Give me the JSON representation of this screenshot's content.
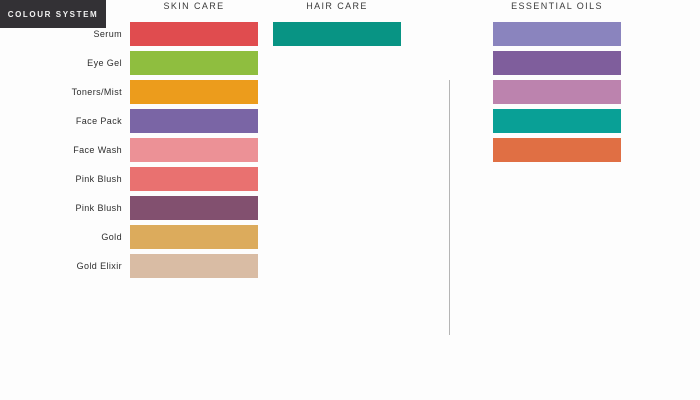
{
  "badge": {
    "label": "COLOUR SYSTEM",
    "bg": "#333135",
    "text_color": "#f2f2f2"
  },
  "divider": {
    "color": "#b5b5b5"
  },
  "columns": [
    {
      "id": "skin-care",
      "header": "SKIN CARE",
      "has_labels": true,
      "swatches": [
        {
          "label": "Serum",
          "color": "#e04c4f"
        },
        {
          "label": "Eye Gel",
          "color": "#8fbe3f"
        },
        {
          "label": "Toners/Mist",
          "color": "#ec9c1c"
        },
        {
          "label": "Face Pack",
          "color": "#7a65a5"
        },
        {
          "label": "Face Wash",
          "color": "#ec9196"
        },
        {
          "label": "Pink Blush",
          "color": "#e97170"
        },
        {
          "label": "Pink Blush",
          "color": "#82506f"
        },
        {
          "label": "Gold",
          "color": "#dcab5c"
        },
        {
          "label": "Gold Elixir",
          "color": "#d9bca4"
        }
      ]
    },
    {
      "id": "hair-care",
      "header": "HAIR CARE",
      "has_labels": false,
      "swatches": [
        {
          "label": "",
          "color": "#089484"
        }
      ]
    },
    {
      "id": "essential-oils",
      "header": "ESSENTIAL OILS",
      "has_labels": false,
      "swatches": [
        {
          "label": "",
          "color": "#8a84be"
        },
        {
          "label": "",
          "color": "#7f5e9c"
        },
        {
          "label": "",
          "color": "#bc83ae"
        },
        {
          "label": "",
          "color": "#09a096"
        },
        {
          "label": "",
          "color": "#e06f44"
        }
      ]
    }
  ]
}
